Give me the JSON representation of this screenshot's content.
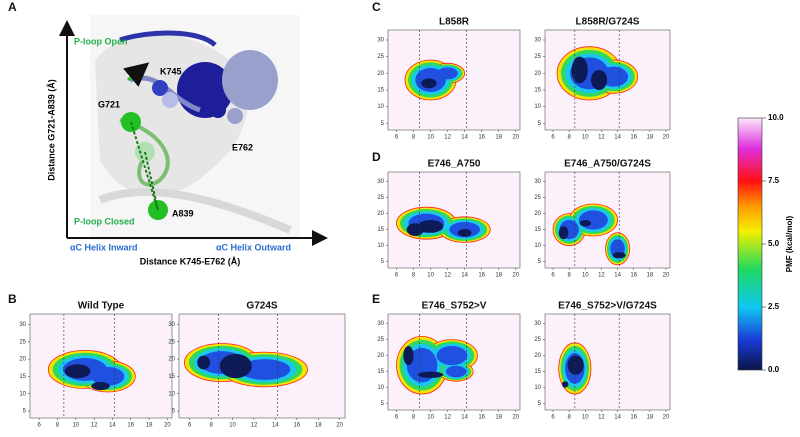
{
  "panels": [
    "A",
    "B",
    "C",
    "D",
    "E"
  ],
  "panel_a": {
    "y_axis_label": "Distance G721-A839 (Å)",
    "x_axis_label": "Distance K745-E762 (Å)",
    "ploop_open": "P-loop Open",
    "ploop_closed": "P-loop Closed",
    "helix_inward": "αC Helix Inward",
    "helix_outward": "αC Helix Outward",
    "residues": [
      "G721",
      "K745",
      "E762",
      "A839"
    ]
  },
  "plots": [
    {
      "panel": "B",
      "title": "Wild Type"
    },
    {
      "panel": "B",
      "title": "G724S"
    },
    {
      "panel": "C",
      "title": "L858R"
    },
    {
      "panel": "C",
      "title": "L858R/G724S"
    },
    {
      "panel": "D",
      "title": "E746_A750"
    },
    {
      "panel": "D",
      "title": "E746_A750/G724S"
    },
    {
      "panel": "E",
      "title": "E746_S752>V"
    },
    {
      "panel": "E",
      "title": "E746_S752>V/G724S"
    }
  ],
  "xlim": [
    5,
    20.5
  ],
  "ylim": [
    3,
    33
  ],
  "xticks": [
    6,
    8,
    10,
    12,
    14,
    16,
    18,
    20
  ],
  "yticks": [
    5,
    10,
    15,
    20,
    25,
    30
  ],
  "reference_lines": [
    8.7,
    14.2
  ],
  "colorbar": {
    "label": "PMF (kcal/mol)",
    "lim": [
      0,
      10
    ],
    "ticks": [
      {
        "value": 0,
        "label": "0.0"
      },
      {
        "value": 2.5,
        "label": "2.5"
      },
      {
        "value": 5,
        "label": "5.0"
      },
      {
        "value": 7.5,
        "label": "7.5"
      },
      {
        "value": 10,
        "label": "10.0"
      }
    ]
  }
}
